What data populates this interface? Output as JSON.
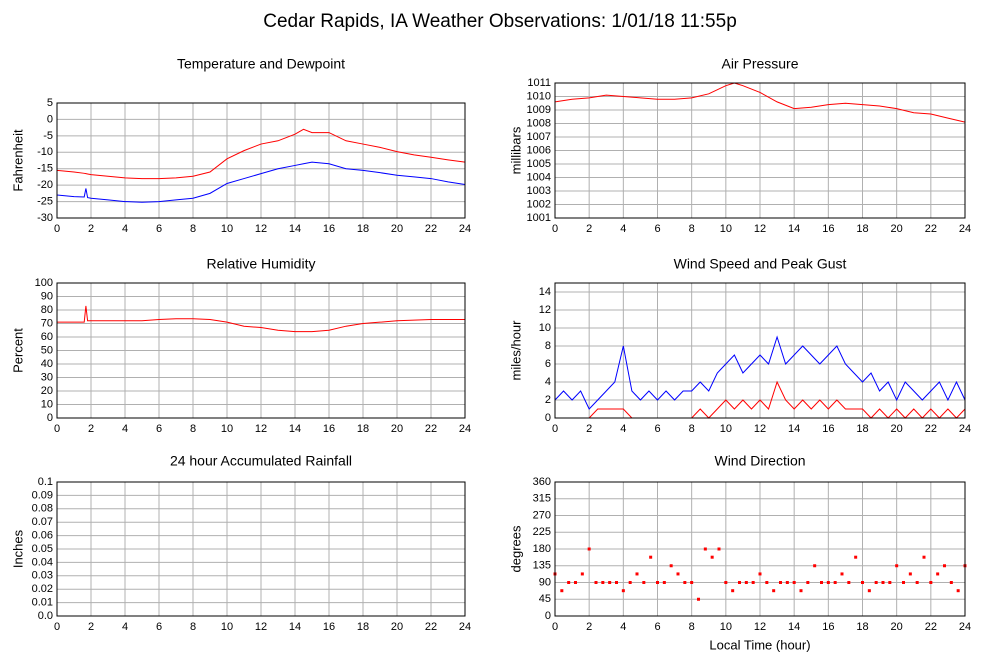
{
  "title": "Cedar Rapids, IA Weather Observations: 1/01/18 11:55p",
  "chart_data": [
    {
      "type": "line",
      "title": "Temperature and Dewpoint",
      "ylabel": "Fahrenheit",
      "x": [
        0,
        1,
        1.6,
        1.7,
        1.8,
        2,
        3,
        4,
        5,
        6,
        7,
        8,
        9,
        10,
        11,
        12,
        13,
        14,
        14.5,
        15,
        16,
        17,
        18,
        19,
        20,
        21,
        22,
        23,
        24
      ],
      "series": [
        {
          "color": "#ff0000",
          "values": [
            -15.5,
            -16,
            -16.4,
            -16.5,
            -16.6,
            -16.8,
            -17.3,
            -17.8,
            -18,
            -18,
            -17.8,
            -17.3,
            -16,
            -12,
            -9.5,
            -7.5,
            -6.5,
            -4.5,
            -3,
            -4,
            -4,
            -6.5,
            -7.5,
            -8.5,
            -9.8,
            -10.8,
            -11.5,
            -12.3,
            -13
          ]
        },
        {
          "color": "#0000ff",
          "values": [
            -23,
            -23.5,
            -23.6,
            -21,
            -23.8,
            -24,
            -24.5,
            -25,
            -25.2,
            -25,
            -24.5,
            -24,
            -22.5,
            -19.5,
            -18,
            -16.5,
            -15,
            -14,
            -13.5,
            -13,
            -13.5,
            -15,
            -15.5,
            -16.2,
            -17,
            -17.5,
            -18,
            -19,
            -19.8
          ]
        }
      ],
      "xlim": [
        0,
        24
      ],
      "xticks": [
        0,
        2,
        4,
        6,
        8,
        10,
        12,
        14,
        16,
        18,
        20,
        22,
        24
      ],
      "ylim": [
        -30,
        5
      ],
      "yticks": [
        -30,
        -25,
        -20,
        -15,
        -10,
        -5,
        0,
        5
      ],
      "grid": true
    },
    {
      "type": "line",
      "title": "Relative Humidity",
      "ylabel": "Percent",
      "x": [
        0,
        1,
        1.6,
        1.7,
        1.8,
        2,
        3,
        4,
        5,
        6,
        7,
        8,
        9,
        10,
        11,
        12,
        13,
        14,
        15,
        16,
        17,
        18,
        19,
        20,
        21,
        22,
        23,
        24
      ],
      "series": [
        {
          "color": "#ff0000",
          "values": [
            71,
            71,
            71,
            83,
            72,
            72,
            72,
            72,
            72,
            73,
            73.5,
            73.5,
            73,
            71,
            68,
            67,
            65,
            64,
            64,
            65,
            68,
            70,
            71,
            72,
            72.5,
            73,
            73,
            73
          ]
        }
      ],
      "xlim": [
        0,
        24
      ],
      "xticks": [
        0,
        2,
        4,
        6,
        8,
        10,
        12,
        14,
        16,
        18,
        20,
        22,
        24
      ],
      "ylim": [
        0,
        100
      ],
      "yticks": [
        0,
        10,
        20,
        30,
        40,
        50,
        60,
        70,
        80,
        90,
        100
      ],
      "grid": true
    },
    {
      "type": "line",
      "title": "24 hour Accumulated Rainfall",
      "ylabel": "Inches",
      "x": [
        0,
        24
      ],
      "series": [
        {
          "color": "#e0306a",
          "values": [
            0,
            0
          ]
        }
      ],
      "xlim": [
        0,
        24
      ],
      "xticks": [
        0,
        2,
        4,
        6,
        8,
        10,
        12,
        14,
        16,
        18,
        20,
        22,
        24
      ],
      "ylim": [
        0,
        0.1
      ],
      "yticks": [
        {
          "value": 0,
          "label": "0.0"
        },
        0.01,
        0.02,
        0.03,
        0.04,
        0.05,
        0.06,
        0.07,
        0.08,
        0.09,
        0.1
      ],
      "grid": true
    },
    {
      "type": "line",
      "title": "Air Pressure",
      "ylabel": "millibars",
      "x": [
        0,
        1,
        2,
        3,
        4,
        5,
        6,
        7,
        8,
        9,
        10,
        10.5,
        11,
        12,
        13,
        14,
        15,
        16,
        17,
        18,
        19,
        20,
        21,
        22,
        23,
        24
      ],
      "series": [
        {
          "color": "#ff0000",
          "values": [
            1009.6,
            1009.8,
            1009.9,
            1010.1,
            1010,
            1009.9,
            1009.8,
            1009.8,
            1009.9,
            1010.2,
            1010.8,
            1011,
            1010.8,
            1010.3,
            1009.6,
            1009.1,
            1009.2,
            1009.4,
            1009.5,
            1009.4,
            1009.3,
            1009.1,
            1008.8,
            1008.7,
            1008.4,
            1008.1
          ]
        }
      ],
      "xlim": [
        0,
        24
      ],
      "xticks": [
        0,
        2,
        4,
        6,
        8,
        10,
        12,
        14,
        16,
        18,
        20,
        22,
        24
      ],
      "ylim": [
        1001,
        1011
      ],
      "yticks": [
        1001,
        1002,
        1003,
        1004,
        1005,
        1006,
        1007,
        1008,
        1009,
        1010,
        1011
      ],
      "grid": true
    },
    {
      "type": "line",
      "title": "Wind Speed and Peak Gust",
      "ylabel": "miles/hour",
      "x": [
        0,
        0.5,
        1,
        1.5,
        2,
        2.5,
        3,
        3.5,
        4,
        4.5,
        5,
        5.5,
        6,
        6.5,
        7,
        7.5,
        8,
        8.5,
        9,
        9.5,
        10,
        10.5,
        11,
        11.5,
        12,
        12.5,
        13,
        13.5,
        14,
        14.5,
        15,
        15.5,
        16,
        16.5,
        17,
        17.5,
        18,
        18.5,
        19,
        19.5,
        20,
        20.5,
        21,
        21.5,
        22,
        22.5,
        23,
        23.5,
        24
      ],
      "series": [
        {
          "color": "#0000ff",
          "values": [
            2,
            3,
            2,
            3,
            1,
            2,
            3,
            4,
            8,
            3,
            2,
            3,
            2,
            3,
            2,
            3,
            3,
            4,
            3,
            5,
            6,
            7,
            5,
            6,
            7,
            6,
            9,
            6,
            7,
            8,
            7,
            6,
            7,
            8,
            6,
            5,
            4,
            5,
            3,
            4,
            2,
            4,
            3,
            2,
            3,
            4,
            2,
            4,
            2
          ]
        },
        {
          "color": "#ff0000",
          "values": [
            0,
            0,
            0,
            0,
            0,
            1,
            1,
            1,
            1,
            0,
            0,
            0,
            0,
            0,
            0,
            0,
            0,
            1,
            0,
            1,
            2,
            1,
            2,
            1,
            2,
            1,
            4,
            2,
            1,
            2,
            1,
            2,
            1,
            2,
            1,
            1,
            1,
            0,
            1,
            0,
            1,
            0,
            1,
            0,
            1,
            0,
            1,
            0,
            1
          ]
        }
      ],
      "xlim": [
        0,
        24
      ],
      "xticks": [
        0,
        2,
        4,
        6,
        8,
        10,
        12,
        14,
        16,
        18,
        20,
        22,
        24
      ],
      "ylim": [
        0,
        15
      ],
      "yticks": [
        0,
        2,
        4,
        6,
        8,
        10,
        12,
        14
      ],
      "grid": true
    },
    {
      "type": "scatter",
      "title": "Wind Direction",
      "ylabel": "degrees",
      "xlabel": "Local Time (hour)",
      "x": [
        0,
        0.4,
        0.8,
        1.2,
        1.6,
        2,
        2.4,
        2.8,
        3.2,
        3.6,
        4,
        4.4,
        4.8,
        5.2,
        5.6,
        6,
        6.4,
        6.8,
        7.2,
        7.6,
        8,
        8.4,
        8.8,
        9.2,
        9.6,
        10,
        10.4,
        10.8,
        11.2,
        11.6,
        12,
        12.4,
        12.8,
        13.2,
        13.6,
        14,
        14.4,
        14.8,
        15.2,
        15.6,
        16,
        16.4,
        16.8,
        17.2,
        17.6,
        18,
        18.4,
        18.8,
        19.2,
        19.6,
        20,
        20.4,
        20.8,
        21.2,
        21.6,
        22,
        22.4,
        22.8,
        23.2,
        23.6,
        24
      ],
      "series": [
        {
          "color": "#ff0000",
          "values": [
            113,
            68,
            90,
            90,
            113,
            180,
            90,
            90,
            90,
            90,
            68,
            90,
            113,
            90,
            158,
            90,
            90,
            135,
            113,
            90,
            90,
            45,
            180,
            158,
            180,
            90,
            68,
            90,
            90,
            90,
            113,
            90,
            68,
            90,
            90,
            90,
            68,
            90,
            135,
            90,
            90,
            90,
            113,
            90,
            158,
            90,
            68,
            90,
            90,
            90,
            135,
            90,
            113,
            90,
            158,
            90,
            113,
            135,
            90,
            68,
            135
          ]
        }
      ],
      "xlim": [
        0,
        24
      ],
      "xticks": [
        0,
        2,
        4,
        6,
        8,
        10,
        12,
        14,
        16,
        18,
        20,
        22,
        24
      ],
      "ylim": [
        0,
        360
      ],
      "yticks": [
        0,
        45,
        90,
        135,
        180,
        225,
        270,
        315,
        360
      ],
      "grid": true
    }
  ]
}
